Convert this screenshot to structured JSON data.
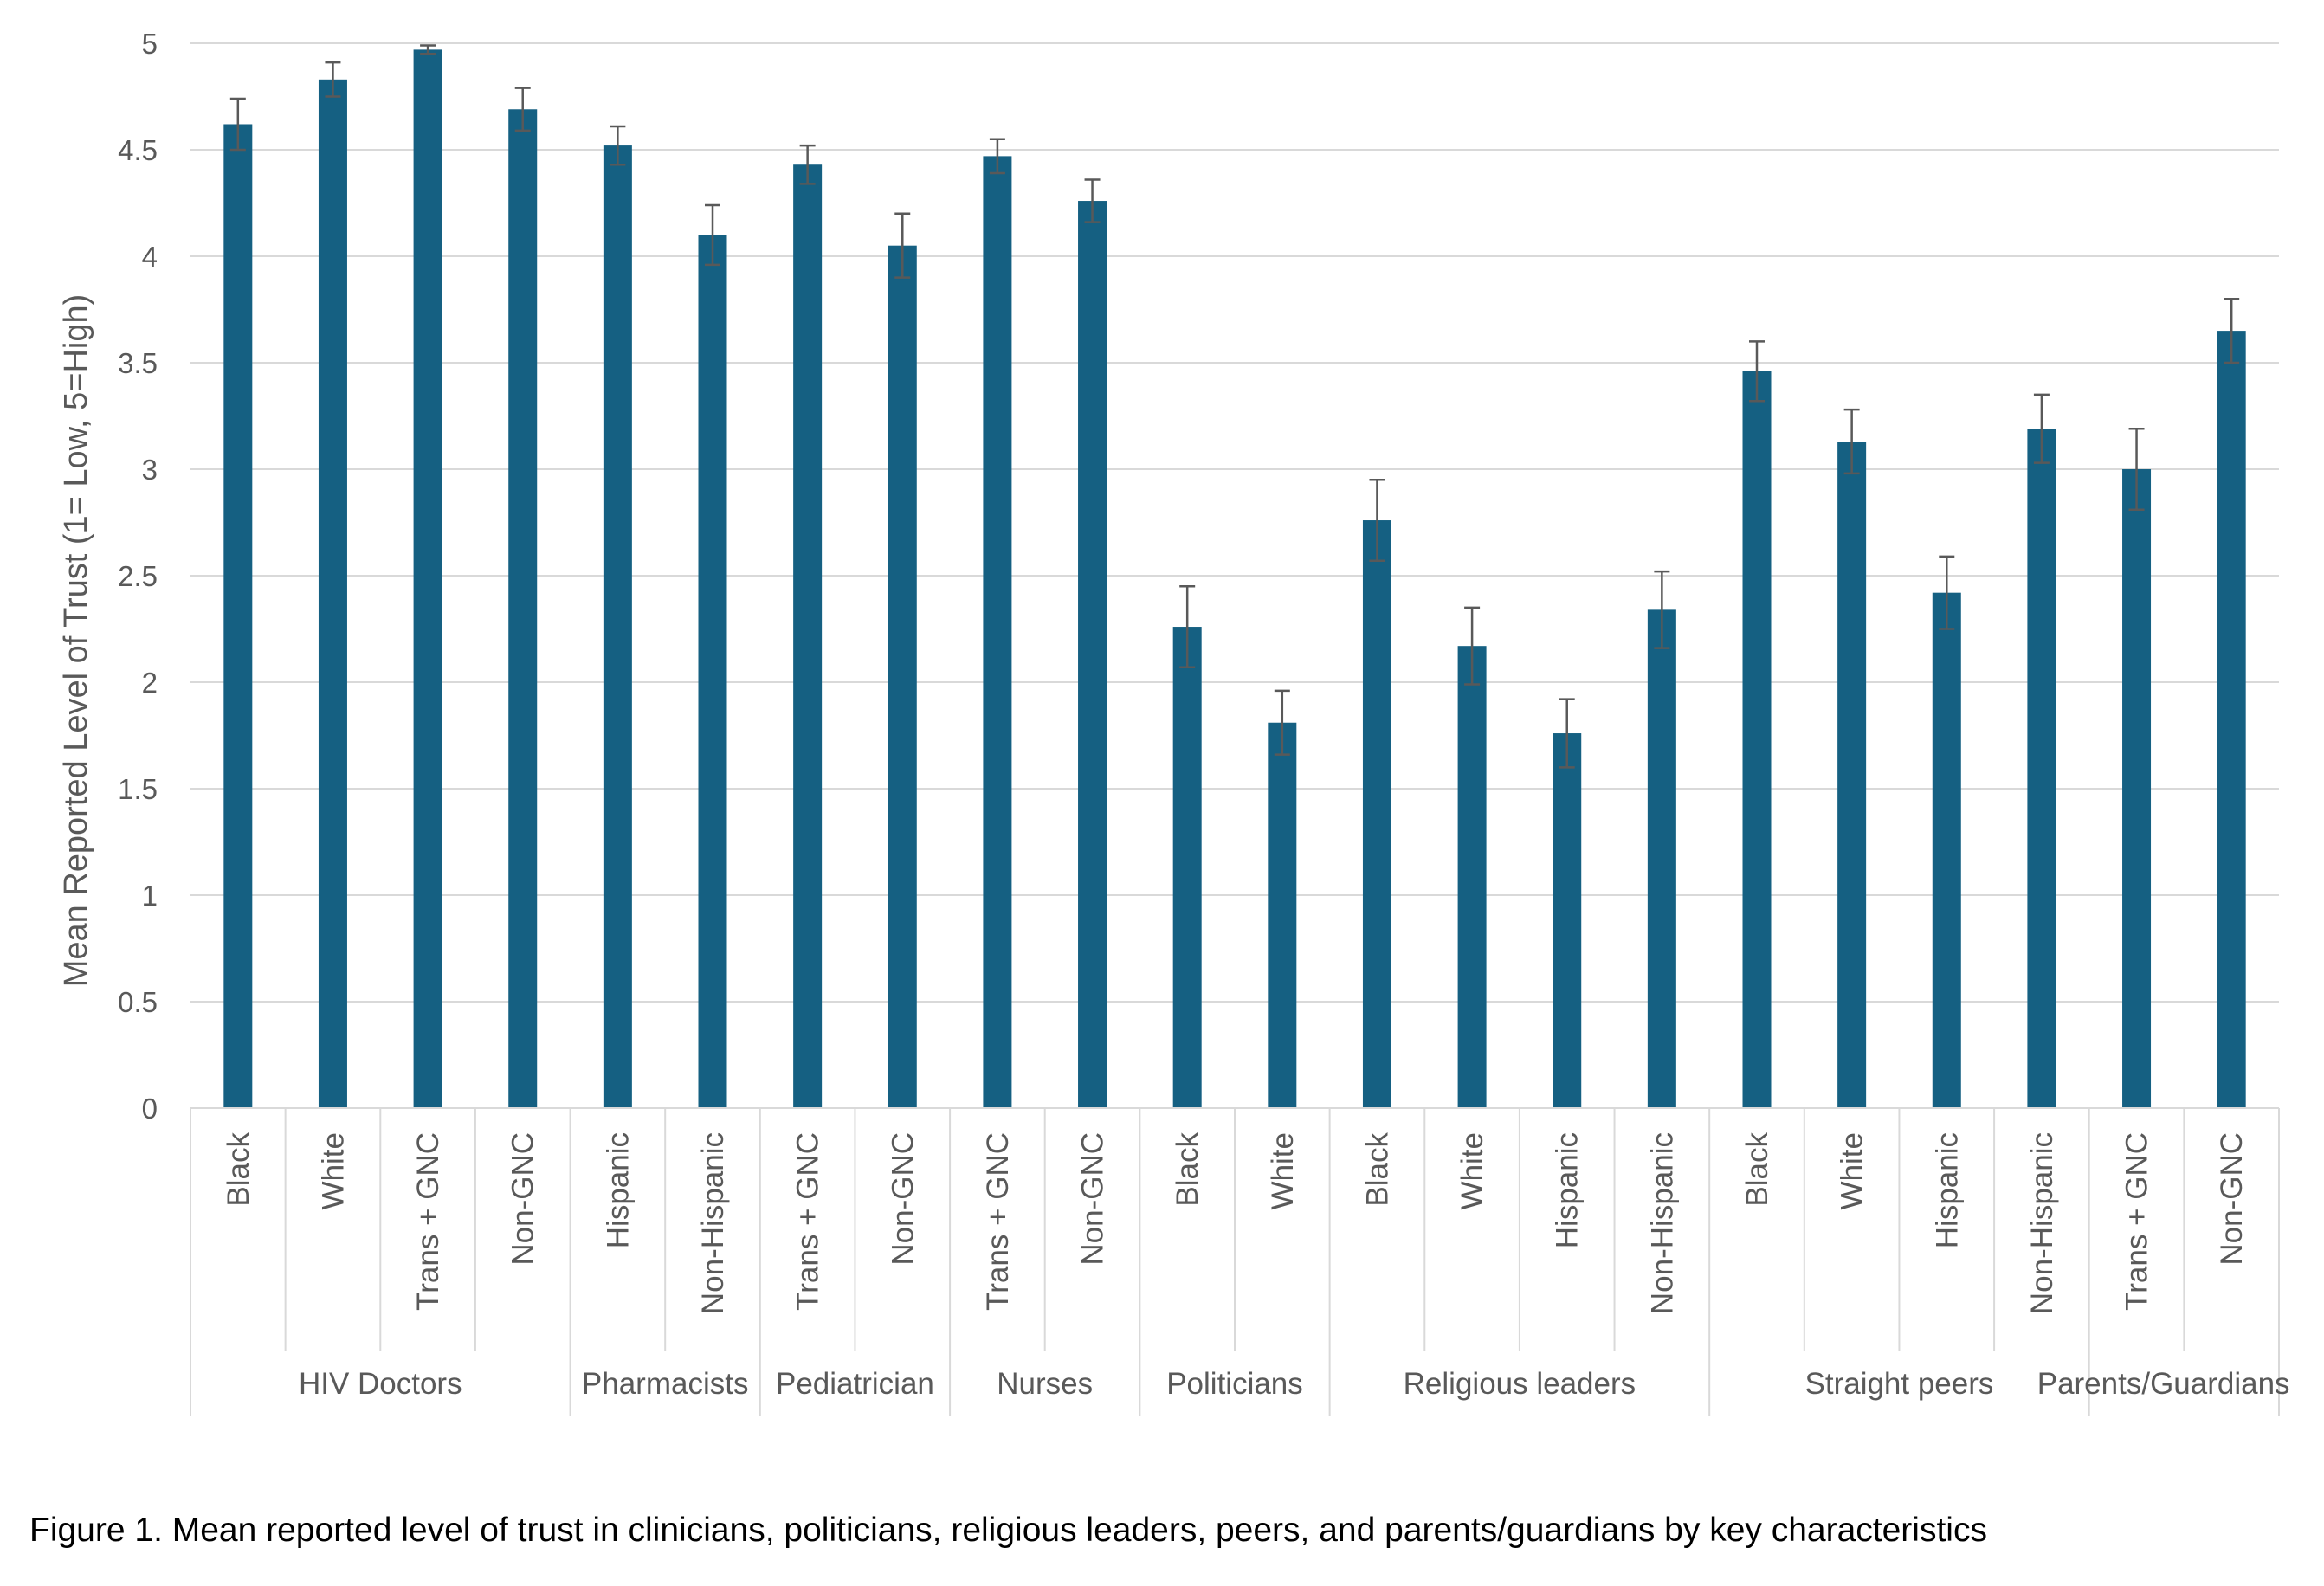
{
  "caption": "Figure 1. Mean reported level of trust in clinicians, politicians, religious leaders, peers, and parents/guardians by key characteristics",
  "colors": {
    "bar": "#156082",
    "grid": "#d9d9d9",
    "error_bar": "#595959",
    "text": "#595959"
  },
  "chart_data": {
    "type": "bar",
    "title": "",
    "xlabel": "",
    "ylabel": "Mean Reported Level of Trust (1= Low, 5=High)",
    "ylim": [
      0,
      5
    ],
    "yticks": [
      0,
      0.5,
      1,
      1.5,
      2,
      2.5,
      3,
      3.5,
      4,
      4.5,
      5
    ],
    "ytick_labels": [
      "0",
      "0.5",
      "1",
      "1.5",
      "2",
      "2.5",
      "3",
      "3.5",
      "4",
      "4.5",
      "5"
    ],
    "grid": true,
    "legend": "none",
    "groups": [
      {
        "label": "HIV Doctors",
        "count": 4
      },
      {
        "label": "Pharmacists",
        "count": 2
      },
      {
        "label": "Pediatrician",
        "count": 2
      },
      {
        "label": "Nurses",
        "count": 2
      },
      {
        "label": "Politicians",
        "count": 2
      },
      {
        "label": "Religious leaders",
        "count": 4
      },
      {
        "label": "Straight peers",
        "count": 4
      },
      {
        "label": "Parents/Guardians",
        "count": 2
      }
    ],
    "categories": [
      "Black",
      "White",
      "Trans + GNC",
      "Non-GNC",
      "Hispanic",
      "Non-Hispanic",
      "Trans + GNC",
      "Non-GNC",
      "Trans + GNC",
      "Non-GNC",
      "Black",
      "White",
      "Black",
      "White",
      "Hispanic",
      "Non-Hispanic",
      "Black",
      "White",
      "Hispanic",
      "Non-Hispanic",
      "Trans + GNC",
      "Non-GNC"
    ],
    "values": [
      4.62,
      4.83,
      4.97,
      4.69,
      4.52,
      4.1,
      4.43,
      4.05,
      4.47,
      4.26,
      2.26,
      1.81,
      2.76,
      2.17,
      1.76,
      2.34,
      3.46,
      3.13,
      2.42,
      3.19,
      3.0,
      3.65
    ],
    "error": [
      0.12,
      0.08,
      0.02,
      0.1,
      0.09,
      0.14,
      0.09,
      0.15,
      0.08,
      0.1,
      0.19,
      0.15,
      0.19,
      0.18,
      0.16,
      0.18,
      0.14,
      0.15,
      0.17,
      0.16,
      0.19,
      0.15
    ]
  }
}
